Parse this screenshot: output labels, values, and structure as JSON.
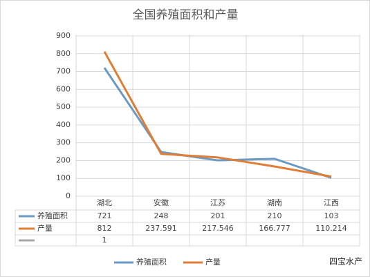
{
  "chart_data": {
    "type": "line",
    "title": "全国养殖面积和产量",
    "categories": [
      "湖北",
      "安徽",
      "江苏",
      "湖南",
      "江西"
    ],
    "series": [
      {
        "name": "养殖面积",
        "color": "#6a9ac4",
        "values": [
          721,
          248,
          201,
          210,
          103
        ]
      },
      {
        "name": "产量",
        "color": "#e07d35",
        "values": [
          812,
          237.591,
          217.546,
          166.777,
          110.214
        ]
      },
      {
        "color": "#a5a5a5",
        "values": [
          1,
          null,
          null,
          null,
          null
        ]
      }
    ],
    "ylim": [
      0,
      900
    ],
    "yticks": [
      0,
      100,
      200,
      300,
      400,
      500,
      600,
      700,
      800,
      900
    ],
    "grid": true,
    "legend": "bottom"
  },
  "watermark": "四宝水产"
}
